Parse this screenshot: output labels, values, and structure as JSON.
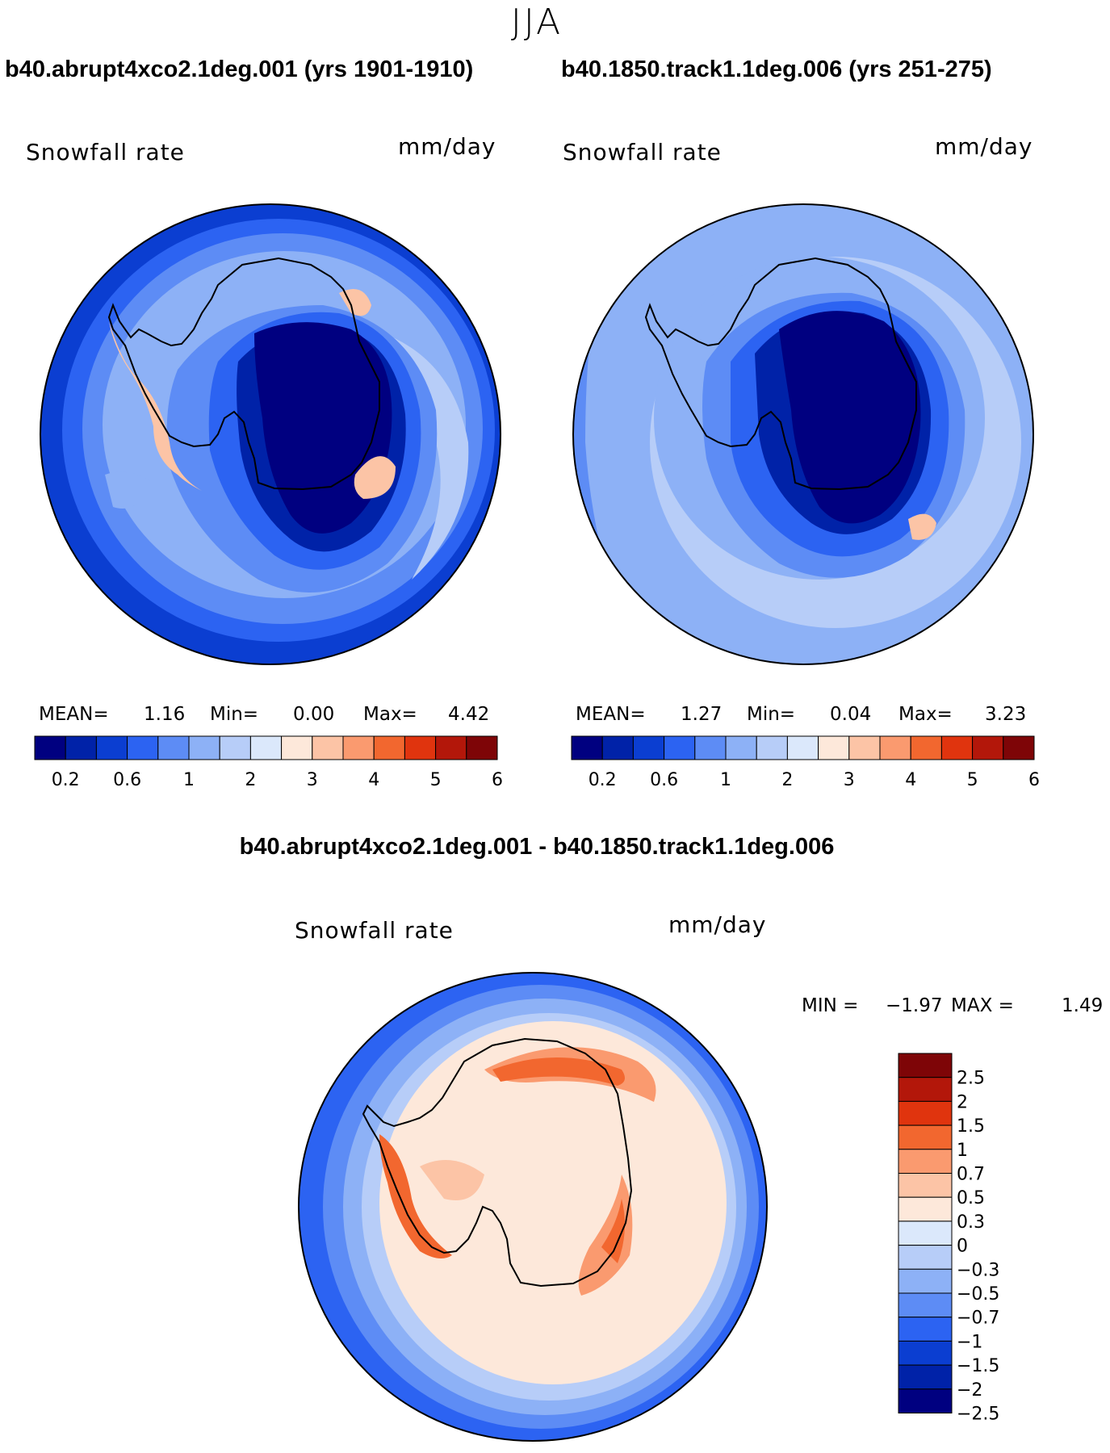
{
  "season": "JJA",
  "panels": [
    {
      "id": "case",
      "title": "b40.abrupt4xco2.1deg.001 (yrs 1901-1910)",
      "variable": "Snowfall rate",
      "units": "mm/day",
      "stats": {
        "mean_label": "MEAN=",
        "mean": "1.16",
        "min_label": "Min=",
        "min": "0.00",
        "max_label": "Max=",
        "max": "4.42"
      }
    },
    {
      "id": "control",
      "title": "b40.1850.track1.1deg.006 (yrs 251-275)",
      "variable": "Snowfall rate",
      "units": "mm/day",
      "stats": {
        "mean_label": "MEAN=",
        "mean": "1.27",
        "min_label": "Min=",
        "min": "0.04",
        "max_label": "Max=",
        "max": "3.23"
      }
    }
  ],
  "diff_panel": {
    "title": "b40.abrupt4xco2.1deg.001 - b40.1850.track1.1deg.006",
    "variable": "Snowfall rate",
    "units": "mm/day",
    "min_label": "MIN =",
    "min": "−1.97",
    "max_label": "MAX =",
    "max": "1.49"
  },
  "colors": {
    "abs_scale": [
      "#000080",
      "#0022a8",
      "#0b3ed1",
      "#2c63f2",
      "#5d8cf5",
      "#8db1f6",
      "#b7cdf8",
      "#dbe8fb",
      "#fde8da",
      "#fcc4a6",
      "#fa9a6f",
      "#f2672f",
      "#e0340e",
      "#b3170a",
      "#7e0507"
    ],
    "diff_scale": [
      "#7e0507",
      "#b3170a",
      "#e0340e",
      "#f2672f",
      "#fa9a6f",
      "#fcc4a6",
      "#fde8da",
      "#dbe8fb",
      "#b7cdf8",
      "#8db1f6",
      "#5d8cf5",
      "#2c63f2",
      "#0b3ed1",
      "#0022a8",
      "#000080"
    ],
    "coast": "#000000"
  },
  "chart_data": [
    {
      "type": "heatmap",
      "projection": "south-polar-stereographic",
      "title": "b40.abrupt4xco2.1deg.001 (yrs 1901-1910)",
      "variable": "Snowfall rate",
      "units": "mm/day",
      "mean": 1.16,
      "min": 0.0,
      "max": 4.42,
      "colorbar_levels": [
        0.2,
        0.4,
        0.6,
        0.8,
        1,
        1.5,
        2,
        2.5,
        3,
        3.5,
        4,
        4.5,
        5,
        5.5,
        6
      ],
      "colorbar_tick_labels": [
        "0.2",
        "0.6",
        "1",
        "2",
        "3",
        "4",
        "5",
        "6"
      ]
    },
    {
      "type": "heatmap",
      "projection": "south-polar-stereographic",
      "title": "b40.1850.track1.1deg.006 (yrs 251-275)",
      "variable": "Snowfall rate",
      "units": "mm/day",
      "mean": 1.27,
      "min": 0.04,
      "max": 3.23,
      "colorbar_levels": [
        0.2,
        0.4,
        0.6,
        0.8,
        1,
        1.5,
        2,
        2.5,
        3,
        3.5,
        4,
        4.5,
        5,
        5.5,
        6
      ],
      "colorbar_tick_labels": [
        "0.2",
        "0.6",
        "1",
        "2",
        "3",
        "4",
        "5",
        "6"
      ]
    },
    {
      "type": "heatmap",
      "projection": "south-polar-stereographic",
      "title": "b40.abrupt4xco2.1deg.001 - b40.1850.track1.1deg.006",
      "variable": "Snowfall rate",
      "units": "mm/day",
      "min": -1.97,
      "max": 1.49,
      "colorbar_levels": [
        -2.5,
        -2,
        -1.5,
        -1,
        -0.7,
        -0.5,
        -0.3,
        0,
        0.3,
        0.5,
        0.7,
        1,
        1.5,
        2,
        2.5
      ],
      "colorbar_tick_labels": [
        "2.5",
        "2",
        "1.5",
        "1",
        "0.7",
        "0.5",
        "0.3",
        "0",
        "−0.3",
        "−0.5",
        "−0.7",
        "−1",
        "−1.5",
        "−2",
        "−2.5"
      ]
    }
  ]
}
